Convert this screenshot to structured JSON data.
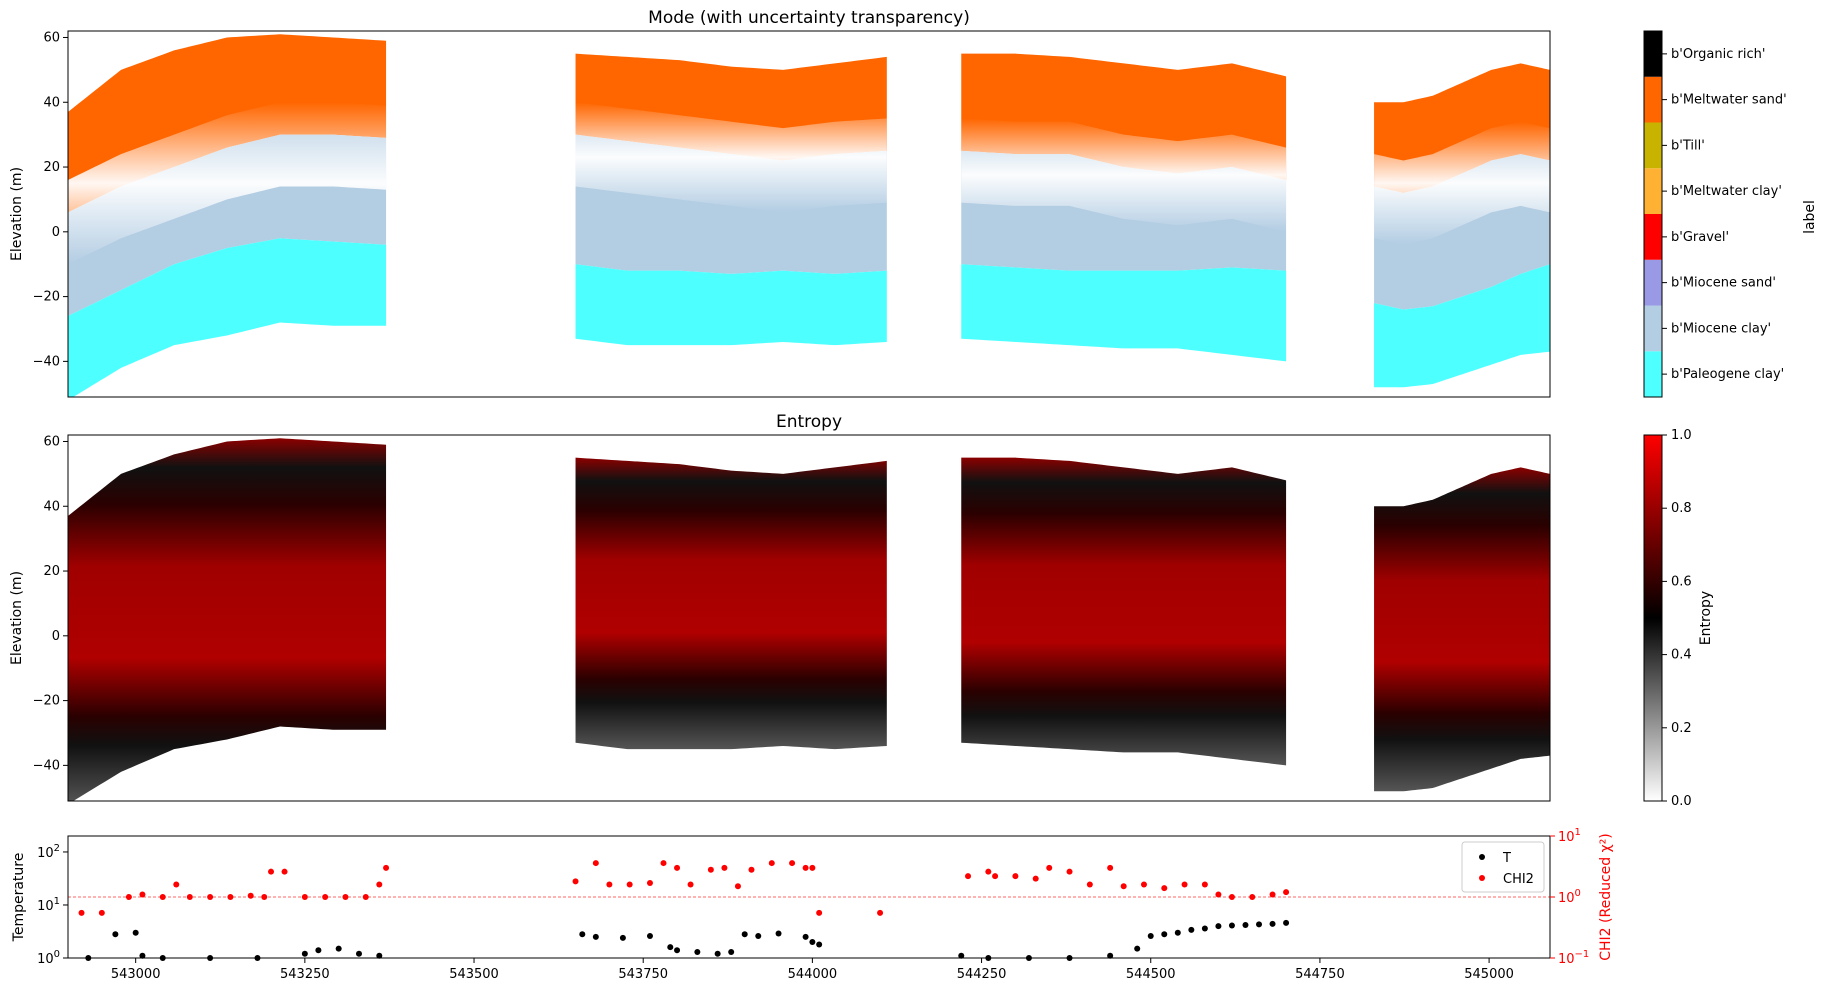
{
  "chart_data": [
    {
      "type": "heatmap",
      "title": "Mode (with uncertainty transparency)",
      "xlabel": "",
      "ylabel": "Elevation (m)",
      "ylim": [
        -51,
        62
      ],
      "xlim": [
        542900,
        545090
      ],
      "yticks": [
        -40,
        -20,
        0,
        20,
        40,
        60
      ],
      "colorbar": {
        "label": "label",
        "classes": [
          {
            "name": "b'Paleogene clay'",
            "color": "#4dffff"
          },
          {
            "name": "b'Miocene clay'",
            "color": "#b3cde3"
          },
          {
            "name": "b'Miocene sand'",
            "color": "#9999e6"
          },
          {
            "name": "b'Gravel'",
            "color": "#ff0000"
          },
          {
            "name": "b'Meltwater clay'",
            "color": "#ffb133"
          },
          {
            "name": "b'Till'",
            "color": "#c8b400"
          },
          {
            "name": "b'Meltwater sand'",
            "color": "#ff6600"
          },
          {
            "name": "b'Organic rich'",
            "color": "#000000"
          }
        ]
      },
      "segments": [
        {
          "x": [
            542900,
            543370
          ],
          "top": [
            37,
            50,
            56,
            60,
            61,
            60,
            59
          ],
          "bottom": [
            -52,
            -42,
            -35,
            -32,
            -28,
            -29,
            -29
          ],
          "layers": [
            {
              "class": "b'Meltwater sand'",
              "upper": [
                37,
                50,
                56,
                60,
                61,
                60,
                59
              ],
              "lower": [
                6,
                14,
                20,
                26,
                30,
                30,
                29
              ]
            },
            {
              "class": "b'Miocene clay'",
              "upper": [
                6,
                14,
                20,
                26,
                30,
                30,
                29
              ],
              "lower": [
                -26,
                -18,
                -10,
                -5,
                -2,
                -3,
                -4
              ]
            },
            {
              "class": "b'Paleogene clay'",
              "upper": [
                -26,
                -18,
                -10,
                -5,
                -2,
                -3,
                -4
              ],
              "lower": [
                -52,
                -42,
                -35,
                -32,
                -28,
                -29,
                -29
              ]
            }
          ]
        },
        {
          "x": [
            543650,
            544110
          ],
          "top": [
            55,
            54,
            53,
            51,
            50,
            52,
            54
          ],
          "bottom": [
            -33,
            -35,
            -35,
            -35,
            -34,
            -35,
            -34
          ],
          "layers": [
            {
              "class": "b'Meltwater sand'",
              "upper": [
                55,
                54,
                53,
                51,
                50,
                52,
                54
              ],
              "lower": [
                30,
                28,
                26,
                24,
                22,
                24,
                25
              ]
            },
            {
              "class": "b'Miocene clay'",
              "upper": [
                30,
                28,
                26,
                24,
                22,
                24,
                25
              ],
              "lower": [
                -10,
                -12,
                -12,
                -13,
                -12,
                -13,
                -12
              ]
            },
            {
              "class": "b'Paleogene clay'",
              "upper": [
                -10,
                -12,
                -12,
                -13,
                -12,
                -13,
                -12
              ],
              "lower": [
                -33,
                -35,
                -35,
                -35,
                -34,
                -35,
                -34
              ]
            }
          ]
        },
        {
          "x": [
            544220,
            544700
          ],
          "top": [
            55,
            55,
            54,
            52,
            50,
            52,
            48
          ],
          "bottom": [
            -33,
            -34,
            -35,
            -36,
            -36,
            -38,
            -40
          ],
          "layers": [
            {
              "class": "b'Meltwater sand'",
              "upper": [
                55,
                55,
                54,
                52,
                50,
                52,
                48
              ],
              "lower": [
                25,
                24,
                24,
                20,
                18,
                20,
                16
              ]
            },
            {
              "class": "b'Miocene clay'",
              "upper": [
                25,
                24,
                24,
                20,
                18,
                20,
                16
              ],
              "lower": [
                -10,
                -11,
                -12,
                -12,
                -12,
                -11,
                -12
              ]
            },
            {
              "class": "b'Paleogene clay'",
              "upper": [
                -10,
                -11,
                -12,
                -12,
                -12,
                -11,
                -12
              ],
              "lower": [
                -33,
                -34,
                -35,
                -36,
                -36,
                -38,
                -40
              ]
            }
          ]
        },
        {
          "x": [
            544830,
            545090
          ],
          "top": [
            40,
            40,
            42,
            46,
            50,
            52,
            50
          ],
          "bottom": [
            -48,
            -48,
            -47,
            -44,
            -41,
            -38,
            -37
          ],
          "layers": [
            {
              "class": "b'Meltwater sand'",
              "upper": [
                40,
                40,
                42,
                46,
                50,
                52,
                50
              ],
              "lower": [
                14,
                12,
                14,
                18,
                22,
                24,
                22
              ]
            },
            {
              "class": "b'Miocene clay'",
              "upper": [
                14,
                12,
                14,
                18,
                22,
                24,
                22
              ],
              "lower": [
                -22,
                -24,
                -23,
                -20,
                -17,
                -13,
                -10
              ]
            },
            {
              "class": "b'Paleogene clay'",
              "upper": [
                -22,
                -24,
                -23,
                -20,
                -17,
                -13,
                -10
              ],
              "lower": [
                -48,
                -48,
                -47,
                -44,
                -41,
                -38,
                -37
              ]
            }
          ]
        }
      ]
    },
    {
      "type": "heatmap",
      "title": "Entropy",
      "xlabel": "",
      "ylabel": "Elevation (m)",
      "ylim": [
        -51,
        62
      ],
      "xlim": [
        542900,
        545090
      ],
      "yticks": [
        -40,
        -20,
        0,
        20,
        40,
        60
      ],
      "colorbar": {
        "label": "Entropy",
        "range": [
          0,
          1
        ],
        "ticks": [
          "0.0",
          "0.2",
          "0.4",
          "0.6",
          "0.8",
          "1.0"
        ],
        "stops": [
          {
            "value": 0.0,
            "color": "#ffffff"
          },
          {
            "value": 0.5,
            "color": "#000000"
          },
          {
            "value": 1.0,
            "color": "#ff0000"
          }
        ]
      }
    },
    {
      "type": "scatter",
      "xlabel": "",
      "ylabel": "Temperature",
      "ylabel_right": "CHI2 (Reduced χ²)",
      "ylim": [
        1,
        200
      ],
      "ylim_right": [
        0.1,
        10
      ],
      "yscale": "log",
      "xlim": [
        542900,
        545090
      ],
      "xticks": [
        "543000",
        "543250",
        "543500",
        "543750",
        "544000",
        "544250",
        "544500",
        "544750",
        "545000"
      ],
      "yticks": [
        {
          "value": 1,
          "exp": "0"
        },
        {
          "value": 10,
          "exp": "1"
        },
        {
          "value": 100,
          "exp": "2"
        }
      ],
      "yticks_right": [
        {
          "value": 0.1,
          "exp": "−1"
        },
        {
          "value": 1,
          "exp": "0"
        },
        {
          "value": 10,
          "exp": "1"
        }
      ],
      "reference_line": {
        "axis": "right",
        "value": 1
      },
      "legend": {
        "placement": "top-right"
      },
      "series": [
        {
          "name": "T",
          "color": "#000000",
          "axis": "left",
          "x": [
            542930,
            542970,
            543000,
            543010,
            543040,
            543110,
            543180,
            543250,
            543270,
            543300,
            543330,
            543360,
            543660,
            543680,
            543720,
            543760,
            543790,
            543800,
            543830,
            543860,
            543880,
            543900,
            543920,
            543950,
            543990,
            544000,
            544010,
            544220,
            544260,
            544320,
            544380,
            544440,
            544480,
            544500,
            544520,
            544540,
            544560,
            544580,
            544600,
            544620,
            544640,
            544660,
            544680,
            544700
          ],
          "y": [
            1,
            2.8,
            3,
            1.1,
            1,
            1,
            1,
            1.2,
            1.4,
            1.5,
            1.2,
            1.1,
            2.8,
            2.5,
            2.4,
            2.6,
            1.6,
            1.4,
            1.3,
            1.2,
            1.3,
            2.8,
            2.6,
            2.9,
            2.5,
            2,
            1.8,
            1.1,
            1,
            1,
            1,
            1.1,
            1.5,
            2.6,
            2.8,
            3,
            3.4,
            3.6,
            4,
            4.1,
            4.2,
            4.3,
            4.4,
            4.6
          ]
        },
        {
          "name": "CHI2",
          "color": "#ff0000",
          "axis": "right",
          "x": [
            542920,
            542950,
            542990,
            543010,
            543040,
            543060,
            543080,
            543110,
            543140,
            543170,
            543190,
            543200,
            543220,
            543250,
            543280,
            543310,
            543340,
            543360,
            543370,
            543650,
            543680,
            543700,
            543730,
            543760,
            543780,
            543800,
            543820,
            543850,
            543870,
            543890,
            543910,
            543940,
            543970,
            543990,
            544000,
            544010,
            544100,
            544230,
            544260,
            544270,
            544300,
            544330,
            544350,
            544380,
            544410,
            544440,
            544460,
            544490,
            544520,
            544550,
            544580,
            544600,
            544620,
            544650,
            544680,
            544700
          ],
          "y": [
            0.55,
            0.55,
            1.0,
            1.1,
            1.0,
            1.6,
            1.0,
            1.0,
            1.0,
            1.05,
            1.0,
            2.6,
            2.6,
            1.0,
            1.0,
            1.0,
            1.0,
            1.6,
            3.0,
            1.8,
            3.6,
            1.6,
            1.6,
            1.7,
            3.6,
            3.0,
            1.6,
            2.8,
            3.0,
            1.5,
            2.8,
            3.6,
            3.6,
            3.0,
            3.0,
            0.55,
            0.55,
            2.2,
            2.6,
            2.2,
            2.2,
            2.0,
            3.0,
            2.6,
            1.6,
            3.0,
            1.5,
            1.6,
            1.4,
            1.6,
            1.6,
            1.1,
            1.0,
            1.0,
            1.1,
            1.2
          ]
        }
      ]
    }
  ]
}
